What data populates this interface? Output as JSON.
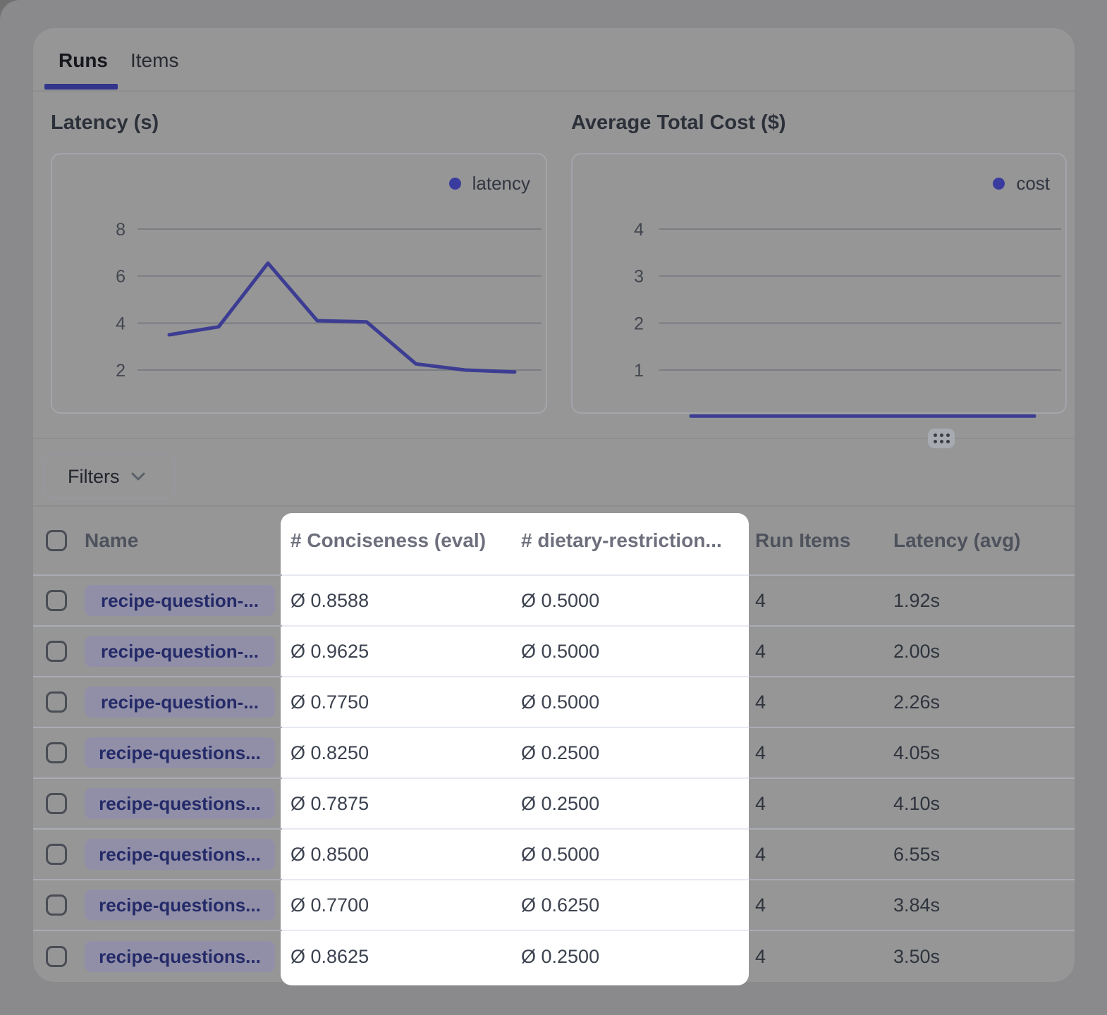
{
  "tabs": {
    "runs": "Runs",
    "items": "Items",
    "active_tab": "Runs"
  },
  "filters": {
    "label": "Filters"
  },
  "chart_data": [
    {
      "type": "line",
      "title": "Latency (s)",
      "yticks": [
        2,
        4,
        6,
        8
      ],
      "grid": true,
      "x_axis_labels_visible": false,
      "legend_position": "top-right",
      "series": [
        {
          "name": "latency",
          "values": [
            3.5,
            3.84,
            6.55,
            4.1,
            4.05,
            2.26,
            2.0,
            1.92
          ]
        }
      ]
    },
    {
      "type": "line",
      "title": "Average Total Cost ($)",
      "yticks": [
        1,
        2,
        3,
        4
      ],
      "grid": true,
      "x_axis_labels_visible": false,
      "legend_position": "top-right",
      "series": [
        {
          "name": "cost",
          "values": [
            0.02,
            0.02,
            0.02,
            0.02,
            0.02,
            0.02,
            0.02,
            0.02
          ]
        }
      ]
    }
  ],
  "table": {
    "columns": [
      "Name",
      "# Conciseness (eval)",
      "# dietary-restriction...",
      "Run Items",
      "Latency (avg)"
    ],
    "rows": [
      {
        "name": "recipe-question-...",
        "conciseness": "Ø 0.8588",
        "dietary": "Ø 0.5000",
        "run_items": "4",
        "latency": "1.92s"
      },
      {
        "name": "recipe-question-...",
        "conciseness": "Ø 0.9625",
        "dietary": "Ø 0.5000",
        "run_items": "4",
        "latency": "2.00s"
      },
      {
        "name": "recipe-question-...",
        "conciseness": "Ø 0.7750",
        "dietary": "Ø 0.5000",
        "run_items": "4",
        "latency": "2.26s"
      },
      {
        "name": "recipe-questions...",
        "conciseness": "Ø 0.8250",
        "dietary": "Ø 0.2500",
        "run_items": "4",
        "latency": "4.05s"
      },
      {
        "name": "recipe-questions...",
        "conciseness": "Ø 0.7875",
        "dietary": "Ø 0.2500",
        "run_items": "4",
        "latency": "4.10s"
      },
      {
        "name": "recipe-questions...",
        "conciseness": "Ø 0.8500",
        "dietary": "Ø 0.5000",
        "run_items": "4",
        "latency": "6.55s"
      },
      {
        "name": "recipe-questions...",
        "conciseness": "Ø 0.7700",
        "dietary": "Ø 0.6250",
        "run_items": "4",
        "latency": "3.84s"
      },
      {
        "name": "recipe-questions...",
        "conciseness": "Ø 0.8625",
        "dietary": "Ø 0.2500",
        "run_items": "4",
        "latency": "3.50s"
      }
    ]
  },
  "highlight": {
    "highlighted_columns": [
      "# Conciseness (eval)",
      "# dietary-restriction..."
    ]
  },
  "colors": {
    "accent_indigo_line": "#3c3d92",
    "legend_dot": "#3a3b9f",
    "gridline": "#7b7d82",
    "tick_text": "#42464e",
    "tab_underline": "#33348c",
    "highlight_background": "#ffffff",
    "badge_background": "#918fa8",
    "badge_text": "#242a68",
    "dim_overlay_tone": "#969697"
  }
}
